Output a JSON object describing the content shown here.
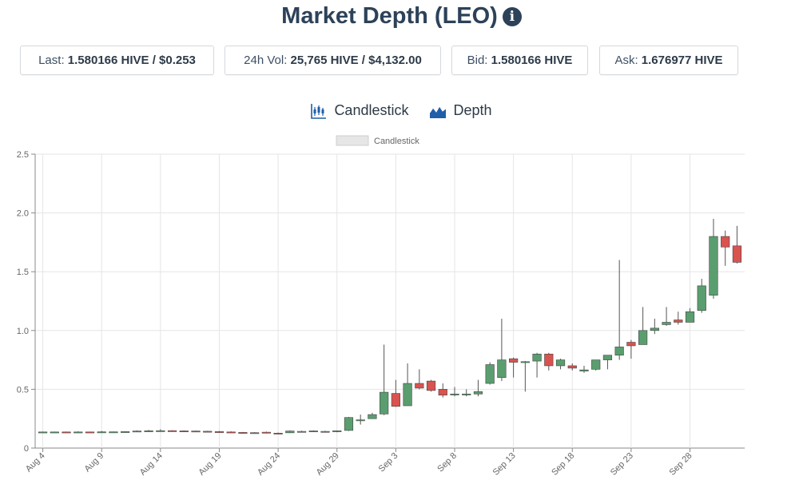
{
  "header": {
    "title": "Market Depth (LEO)",
    "info_icon": "info-circle-icon"
  },
  "stats": [
    {
      "label": "Last: ",
      "value": "1.580166 HIVE / $0.253"
    },
    {
      "label": "24h Vol: ",
      "value": "25,765 HIVE / $4,132.00"
    },
    {
      "label": "Bid: ",
      "value": "1.580166 HIVE"
    },
    {
      "label": "Ask: ",
      "value": "1.676977 HIVE"
    }
  ],
  "tabs": [
    {
      "label": "Candlestick",
      "icon": "candlestick-icon"
    },
    {
      "label": "Depth",
      "icon": "depth-chart-icon"
    }
  ],
  "colors": {
    "up": "#5a9e6f",
    "down": "#d9534f",
    "title": "#2d4259",
    "grid": "#e5e5e5",
    "tab_icon": "#1f5ea8"
  },
  "chart_data": {
    "type": "candlestick",
    "legend": [
      "Candlestick"
    ],
    "legend_position": "top-center",
    "grid": true,
    "ylim": [
      0,
      2.5
    ],
    "yticks": [
      "0",
      "0.5",
      "1.0",
      "1.5",
      "2.0",
      "2.5"
    ],
    "xticks": [
      "Aug 4",
      "Aug 9",
      "Aug 14",
      "Aug 19",
      "Aug 24",
      "Aug 29",
      "Sep 3",
      "Sep 8",
      "Sep 13",
      "Sep 18",
      "Sep 23",
      "Sep 28"
    ],
    "candles": [
      {
        "date": "Aug 4",
        "open": 0.135,
        "high": 0.14,
        "low": 0.13,
        "close": 0.137
      },
      {
        "date": "Aug 5",
        "open": 0.137,
        "high": 0.14,
        "low": 0.133,
        "close": 0.137
      },
      {
        "date": "Aug 6",
        "open": 0.137,
        "high": 0.14,
        "low": 0.133,
        "close": 0.136
      },
      {
        "date": "Aug 7",
        "open": 0.136,
        "high": 0.142,
        "low": 0.13,
        "close": 0.137
      },
      {
        "date": "Aug 8",
        "open": 0.137,
        "high": 0.14,
        "low": 0.133,
        "close": 0.136
      },
      {
        "date": "Aug 9",
        "open": 0.136,
        "high": 0.145,
        "low": 0.13,
        "close": 0.138
      },
      {
        "date": "Aug 10",
        "open": 0.137,
        "high": 0.14,
        "low": 0.133,
        "close": 0.138
      },
      {
        "date": "Aug 11",
        "open": 0.138,
        "high": 0.142,
        "low": 0.134,
        "close": 0.14
      },
      {
        "date": "Aug 12",
        "open": 0.14,
        "high": 0.15,
        "low": 0.137,
        "close": 0.145
      },
      {
        "date": "Aug 13",
        "open": 0.145,
        "high": 0.155,
        "low": 0.14,
        "close": 0.147
      },
      {
        "date": "Aug 14",
        "open": 0.143,
        "high": 0.16,
        "low": 0.14,
        "close": 0.148
      },
      {
        "date": "Aug 15",
        "open": 0.148,
        "high": 0.152,
        "low": 0.144,
        "close": 0.146
      },
      {
        "date": "Aug 16",
        "open": 0.146,
        "high": 0.15,
        "low": 0.142,
        "close": 0.145
      },
      {
        "date": "Aug 17",
        "open": 0.145,
        "high": 0.148,
        "low": 0.14,
        "close": 0.143
      },
      {
        "date": "Aug 18",
        "open": 0.143,
        "high": 0.147,
        "low": 0.138,
        "close": 0.14
      },
      {
        "date": "Aug 19",
        "open": 0.14,
        "high": 0.145,
        "low": 0.13,
        "close": 0.132
      },
      {
        "date": "Aug 20",
        "open": 0.137,
        "high": 0.142,
        "low": 0.128,
        "close": 0.133
      },
      {
        "date": "Aug 21",
        "open": 0.133,
        "high": 0.137,
        "low": 0.128,
        "close": 0.131
      },
      {
        "date": "Aug 22",
        "open": 0.131,
        "high": 0.135,
        "low": 0.127,
        "close": 0.13
      },
      {
        "date": "Aug 23",
        "open": 0.135,
        "high": 0.14,
        "low": 0.125,
        "close": 0.128
      },
      {
        "date": "Aug 24",
        "open": 0.127,
        "high": 0.132,
        "low": 0.12,
        "close": 0.126
      },
      {
        "date": "Aug 25",
        "open": 0.13,
        "high": 0.15,
        "low": 0.128,
        "close": 0.145
      },
      {
        "date": "Aug 26",
        "open": 0.14,
        "high": 0.148,
        "low": 0.136,
        "close": 0.142
      },
      {
        "date": "Aug 27",
        "open": 0.142,
        "high": 0.15,
        "low": 0.14,
        "close": 0.146
      },
      {
        "date": "Aug 28",
        "open": 0.142,
        "high": 0.147,
        "low": 0.136,
        "close": 0.139
      },
      {
        "date": "Aug 29",
        "open": 0.139,
        "high": 0.15,
        "low": 0.135,
        "close": 0.147
      },
      {
        "date": "Aug 30",
        "open": 0.15,
        "high": 0.265,
        "low": 0.145,
        "close": 0.26
      },
      {
        "date": "Aug 31",
        "open": 0.24,
        "high": 0.285,
        "low": 0.2,
        "close": 0.24
      },
      {
        "date": "Sep 1",
        "open": 0.25,
        "high": 0.3,
        "low": 0.25,
        "close": 0.285
      },
      {
        "date": "Sep 2",
        "open": 0.29,
        "high": 0.88,
        "low": 0.28,
        "close": 0.475
      },
      {
        "date": "Sep 3",
        "open": 0.465,
        "high": 0.58,
        "low": 0.35,
        "close": 0.355
      },
      {
        "date": "Sep 4",
        "open": 0.36,
        "high": 0.72,
        "low": 0.36,
        "close": 0.55
      },
      {
        "date": "Sep 5",
        "open": 0.55,
        "high": 0.67,
        "low": 0.5,
        "close": 0.51
      },
      {
        "date": "Sep 6",
        "open": 0.57,
        "high": 0.58,
        "low": 0.48,
        "close": 0.49
      },
      {
        "date": "Sep 7",
        "open": 0.5,
        "high": 0.55,
        "low": 0.43,
        "close": 0.45
      },
      {
        "date": "Sep 8",
        "open": 0.455,
        "high": 0.52,
        "low": 0.44,
        "close": 0.46
      },
      {
        "date": "Sep 9",
        "open": 0.455,
        "high": 0.5,
        "low": 0.44,
        "close": 0.46
      },
      {
        "date": "Sep 10",
        "open": 0.46,
        "high": 0.58,
        "low": 0.44,
        "close": 0.48
      },
      {
        "date": "Sep 11",
        "open": 0.55,
        "high": 0.73,
        "low": 0.54,
        "close": 0.71
      },
      {
        "date": "Sep 12",
        "open": 0.6,
        "high": 1.1,
        "low": 0.57,
        "close": 0.75
      },
      {
        "date": "Sep 13",
        "open": 0.76,
        "high": 0.77,
        "low": 0.6,
        "close": 0.73
      },
      {
        "date": "Sep 14",
        "open": 0.73,
        "high": 0.74,
        "low": 0.48,
        "close": 0.735
      },
      {
        "date": "Sep 15",
        "open": 0.74,
        "high": 0.81,
        "low": 0.6,
        "close": 0.8
      },
      {
        "date": "Sep 16",
        "open": 0.8,
        "high": 0.81,
        "low": 0.66,
        "close": 0.7
      },
      {
        "date": "Sep 17",
        "open": 0.7,
        "high": 0.76,
        "low": 0.67,
        "close": 0.75
      },
      {
        "date": "Sep 18",
        "open": 0.7,
        "high": 0.72,
        "low": 0.66,
        "close": 0.68
      },
      {
        "date": "Sep 19",
        "open": 0.655,
        "high": 0.7,
        "low": 0.64,
        "close": 0.665
      },
      {
        "date": "Sep 20",
        "open": 0.67,
        "high": 0.75,
        "low": 0.66,
        "close": 0.75
      },
      {
        "date": "Sep 21",
        "open": 0.75,
        "high": 0.79,
        "low": 0.67,
        "close": 0.79
      },
      {
        "date": "Sep 22",
        "open": 0.79,
        "high": 1.6,
        "low": 0.75,
        "close": 0.86
      },
      {
        "date": "Sep 23",
        "open": 0.9,
        "high": 0.92,
        "low": 0.76,
        "close": 0.87
      },
      {
        "date": "Sep 24",
        "open": 0.88,
        "high": 1.2,
        "low": 0.88,
        "close": 1.0
      },
      {
        "date": "Sep 25",
        "open": 1.0,
        "high": 1.1,
        "low": 0.97,
        "close": 1.02
      },
      {
        "date": "Sep 26",
        "open": 1.05,
        "high": 1.2,
        "low": 1.04,
        "close": 1.07
      },
      {
        "date": "Sep 27",
        "open": 1.09,
        "high": 1.16,
        "low": 1.05,
        "close": 1.07
      },
      {
        "date": "Sep 28",
        "open": 1.07,
        "high": 1.19,
        "low": 1.07,
        "close": 1.16
      },
      {
        "date": "Sep 29",
        "open": 1.17,
        "high": 1.44,
        "low": 1.15,
        "close": 1.38
      },
      {
        "date": "Sep 30",
        "open": 1.3,
        "high": 1.95,
        "low": 1.27,
        "close": 1.8
      },
      {
        "date": "Oct 1",
        "open": 1.8,
        "high": 1.85,
        "low": 1.55,
        "close": 1.71
      },
      {
        "date": "Oct 2",
        "open": 1.72,
        "high": 1.89,
        "low": 1.57,
        "close": 1.58
      }
    ]
  }
}
